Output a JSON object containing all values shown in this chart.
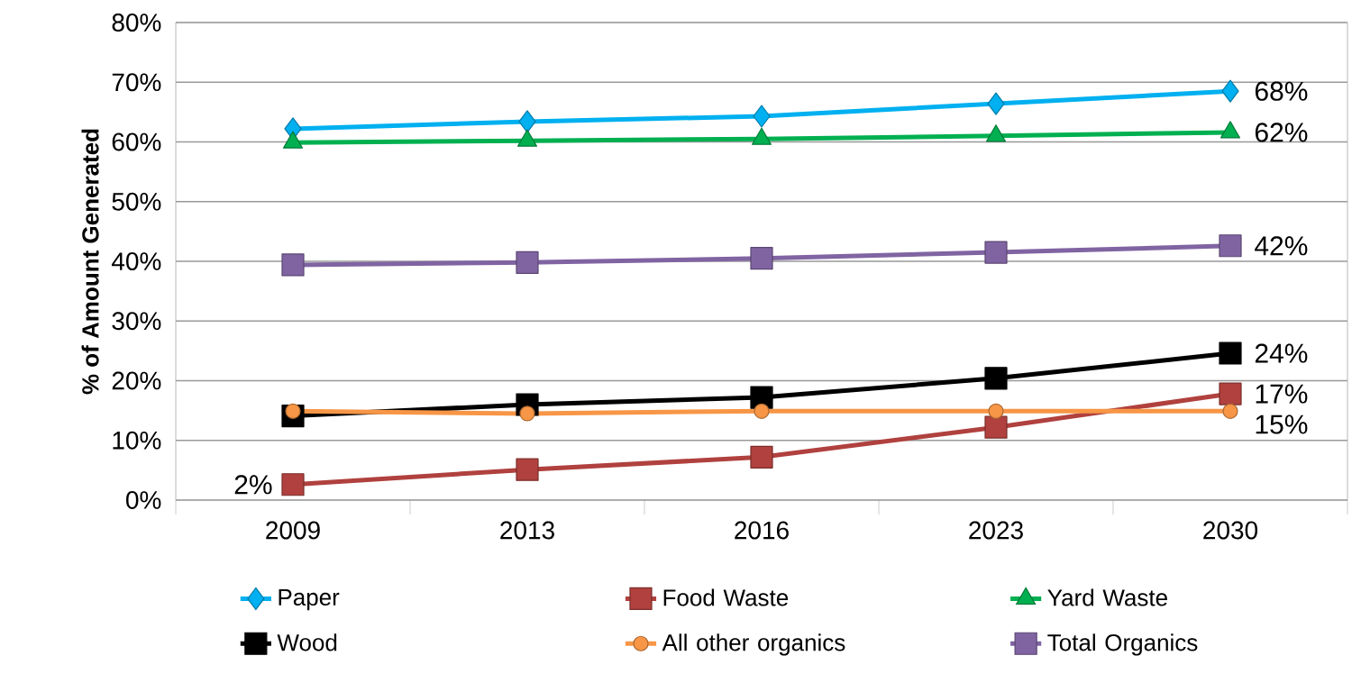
{
  "chart_data": {
    "type": "line",
    "ylabel": "% of Amount Generated",
    "categories": [
      "2009",
      "2013",
      "2016",
      "2023",
      "2030"
    ],
    "series": [
      {
        "name": "Paper",
        "color": "#00b0f0",
        "marker": "diamond",
        "values": [
          62.2,
          63.4,
          64.3,
          66.4,
          68.5
        ]
      },
      {
        "name": "Food Waste",
        "color": "#b0413e",
        "marker": "square",
        "values": [
          2.6,
          5.1,
          7.2,
          12.2,
          17.8
        ]
      },
      {
        "name": "Yard Waste",
        "color": "#00b050",
        "marker": "triangle",
        "values": [
          59.9,
          60.2,
          60.5,
          61.0,
          61.6
        ]
      },
      {
        "name": "Wood",
        "color": "#000000",
        "marker": "square",
        "values": [
          14.1,
          16.0,
          17.2,
          20.4,
          24.6
        ]
      },
      {
        "name": "All other organics",
        "color": "#f79646",
        "marker": "circle",
        "values": [
          14.9,
          14.5,
          14.9,
          14.9,
          14.9
        ]
      },
      {
        "name": "Total Organics",
        "color": "#8064a2",
        "marker": "square",
        "values": [
          39.4,
          39.8,
          40.5,
          41.5,
          42.6
        ]
      }
    ],
    "ylim": [
      0,
      80
    ],
    "yticks": [
      {
        "value": 0,
        "label": "0%"
      },
      {
        "value": 10,
        "label": "10%"
      },
      {
        "value": 20,
        "label": "20%"
      },
      {
        "value": 30,
        "label": "30%"
      },
      {
        "value": 40,
        "label": "40%"
      },
      {
        "value": 50,
        "label": "50%"
      },
      {
        "value": 60,
        "label": "60%"
      },
      {
        "value": 70,
        "label": "70%"
      },
      {
        "value": 80,
        "label": "80%"
      }
    ],
    "grid": "y",
    "legend": "bottom",
    "line_style": "solid",
    "annotations": [
      {
        "text": "68%",
        "x": "2030",
        "y": 68.5
      },
      {
        "text": "62%",
        "x": "2030",
        "y": 61.6
      },
      {
        "text": "42%",
        "x": "2030",
        "y": 42.6
      },
      {
        "text": "24%",
        "x": "2030",
        "y": 24.6
      },
      {
        "text": "17%",
        "x": "2030",
        "y": 17.8
      },
      {
        "text": "15%",
        "x": "2030",
        "y": 14.9
      },
      {
        "text": "2%",
        "x": "2009",
        "y": 2.6
      }
    ]
  }
}
